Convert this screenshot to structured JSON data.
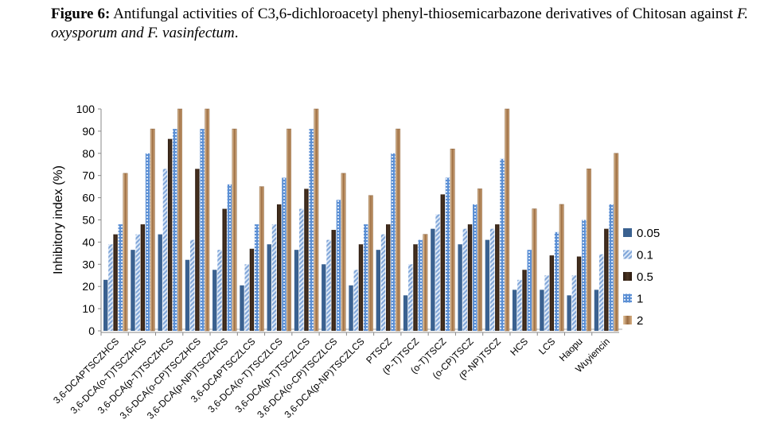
{
  "caption": {
    "label": "Figure 6:",
    "text1": " Antifungal activities of C3,6-dichloroacetyl phenyl-thiosemicarbazone derivatives of Chitosan against ",
    "italic": "F. oxysporum and F. vasinfectum",
    "end": "."
  },
  "chart_data": {
    "type": "bar",
    "title": "",
    "xlabel": "",
    "ylabel": "Inhibitory index (%)",
    "ylim": [
      0,
      100
    ],
    "yticks": [
      0,
      10,
      20,
      30,
      40,
      50,
      60,
      70,
      80,
      90,
      100
    ],
    "legend_position": "right",
    "categories": [
      "3,6-DCAPTSCZHCS",
      "3,6-DCA(o-T)TSCZHCS",
      "3,6-DCA(p-T)TSCZHCS",
      "3,6-DCA(o-CP)TSCZHCS",
      "3,6-DCA(p-NP)TSCZHCS",
      "3,6-DCAPTSCZLCS",
      "3,6-DCA(o-T)TSCZLCS",
      "3,6-DCA(p-T)TSCZLCS",
      "3,6-DCA(o-CP)TSCZLCS",
      "3,6-DCA(p-NP)TSCZLCS",
      "PTSCZ",
      "(P-T)TSCZ",
      "(o-T)TSCZ",
      "(o-CP)TSCZ",
      "(P-NP)TSCZ",
      "HCS",
      "LCS",
      "Haopu",
      "Wuyiencin"
    ],
    "series": [
      {
        "name": "0.05",
        "color": "#3a6190",
        "values": [
          23,
          36.5,
          43.5,
          32,
          27.5,
          20.5,
          39,
          36.5,
          30,
          20.5,
          36.5,
          16,
          46,
          39,
          41,
          18.5,
          18.5,
          16,
          18.5
        ]
      },
      {
        "name": "0.1",
        "color": "#a9c4e8",
        "values": [
          39,
          43.5,
          73,
          41,
          36.5,
          30,
          48,
          55,
          41,
          27.5,
          43.5,
          30,
          52.5,
          46,
          46,
          23,
          25,
          25,
          34.5
        ]
      },
      {
        "name": "0.5",
        "color": "#3d2a1c",
        "values": [
          43.5,
          48,
          86.5,
          73,
          55,
          37,
          57,
          64,
          45.5,
          39,
          48,
          39,
          61.5,
          48,
          48,
          27.5,
          34,
          33.5,
          46
        ]
      },
      {
        "name": "1",
        "color": "#6e9ad6",
        "values": [
          48,
          80,
          91,
          91,
          66,
          48,
          69,
          91,
          59,
          48,
          80,
          41,
          69,
          57,
          77.5,
          36.5,
          44.5,
          50,
          57
        ]
      },
      {
        "name": "2",
        "color": "#c9a27a",
        "values": [
          71,
          91,
          100,
          100,
          91,
          65,
          91,
          100,
          71,
          61,
          91,
          43.5,
          82,
          64,
          100,
          55,
          57,
          73,
          80
        ]
      }
    ]
  }
}
